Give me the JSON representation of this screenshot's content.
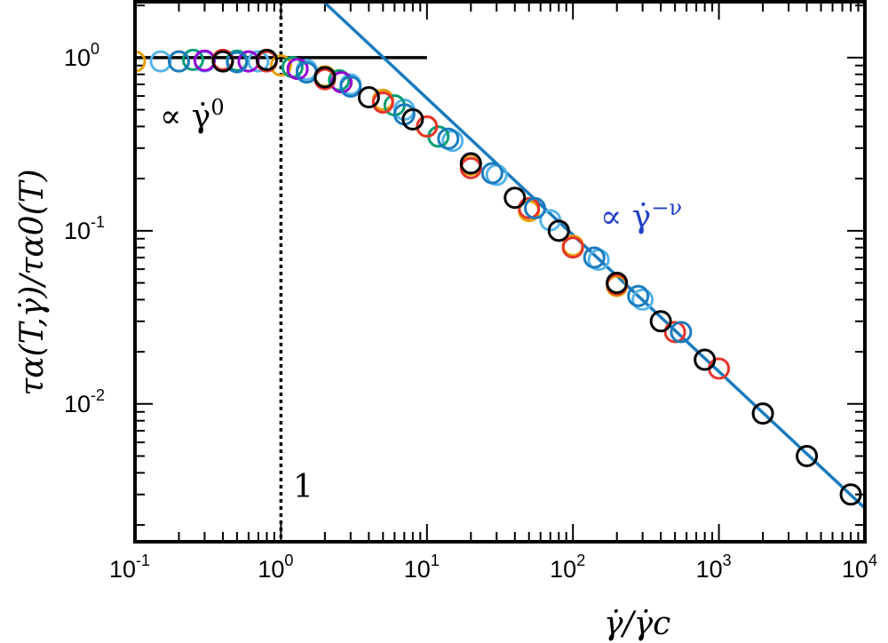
{
  "chart_data": {
    "type": "scatter",
    "title": "",
    "xlabel": "γ̇/γ̇c",
    "ylabel": "τα(T,γ̇)/τα0(T)",
    "xscale": "log",
    "yscale": "log",
    "xlim": [
      0.1,
      10000
    ],
    "ylim": [
      0.0016,
      2.1
    ],
    "x_ticks": [
      {
        "base": "10",
        "exp": "-1",
        "value": 0.1
      },
      {
        "base": "10",
        "exp": "0",
        "value": 1
      },
      {
        "base": "10",
        "exp": "1",
        "value": 10
      },
      {
        "base": "10",
        "exp": "2",
        "value": 100
      },
      {
        "base": "10",
        "exp": "3",
        "value": 1000
      },
      {
        "base": "10",
        "exp": "4",
        "value": 10000
      }
    ],
    "y_ticks": [
      {
        "base": "10",
        "exp": "0",
        "value": 1
      },
      {
        "base": "10",
        "exp": "-1",
        "value": 0.1
      },
      {
        "base": "10",
        "exp": "-2",
        "value": 0.01
      }
    ],
    "grid": false,
    "legend": "none",
    "marker": "open-circle",
    "series": [
      {
        "color": "#e69f00",
        "points": [
          [
            0.1,
            0.95
          ],
          [
            0.2,
            0.95
          ],
          [
            0.5,
            0.95
          ],
          [
            1,
            0.9
          ],
          [
            2,
            0.78
          ],
          [
            5,
            0.57
          ],
          [
            10,
            0.4
          ],
          [
            20,
            0.24
          ],
          [
            50,
            0.13
          ],
          [
            100,
            0.082
          ],
          [
            200,
            0.048
          ]
        ]
      },
      {
        "color": "#56b4e9",
        "points": [
          [
            0.15,
            0.95
          ],
          [
            0.3,
            0.95
          ],
          [
            0.7,
            0.95
          ],
          [
            1.5,
            0.85
          ],
          [
            3,
            0.7
          ],
          [
            7,
            0.5
          ],
          [
            15,
            0.33
          ],
          [
            30,
            0.21
          ],
          [
            70,
            0.115
          ],
          [
            150,
            0.068
          ],
          [
            300,
            0.04
          ]
        ]
      },
      {
        "color": "#009e73",
        "points": [
          [
            0.25,
            0.97
          ],
          [
            0.5,
            0.96
          ],
          [
            1.2,
            0.88
          ],
          [
            2.5,
            0.74
          ],
          [
            6,
            0.53
          ],
          [
            12,
            0.35
          ]
        ]
      },
      {
        "color": "#9400d3",
        "points": [
          [
            0.3,
            0.96
          ],
          [
            0.6,
            0.95
          ],
          [
            1.3,
            0.86
          ],
          [
            2.6,
            0.72
          ]
        ]
      },
      {
        "color": "#e8342a",
        "points": [
          [
            0.4,
            0.97
          ],
          [
            0.8,
            0.95
          ],
          [
            2,
            0.75
          ],
          [
            5,
            0.55
          ],
          [
            10,
            0.4
          ],
          [
            20,
            0.23
          ],
          [
            50,
            0.135
          ],
          [
            100,
            0.08
          ],
          [
            200,
            0.049
          ],
          [
            500,
            0.026
          ],
          [
            1000,
            0.016
          ]
        ]
      },
      {
        "color": "#1a7bbf",
        "points": [
          [
            0.2,
            0.95
          ],
          [
            0.5,
            0.94
          ],
          [
            1.5,
            0.82
          ],
          [
            3,
            0.68
          ],
          [
            7,
            0.47
          ],
          [
            14,
            0.34
          ],
          [
            28,
            0.215
          ],
          [
            55,
            0.135
          ],
          [
            140,
            0.07
          ],
          [
            280,
            0.042
          ],
          [
            550,
            0.026
          ]
        ]
      },
      {
        "color": "#000000",
        "points": [
          [
            0.4,
            0.95
          ],
          [
            0.8,
            0.97
          ],
          [
            2,
            0.77
          ],
          [
            4,
            0.59
          ],
          [
            8,
            0.44
          ],
          [
            20,
            0.245
          ],
          [
            40,
            0.155
          ],
          [
            80,
            0.1
          ],
          [
            200,
            0.05
          ],
          [
            400,
            0.03
          ],
          [
            800,
            0.018
          ],
          [
            2000,
            0.0088
          ],
          [
            4000,
            0.005
          ],
          [
            8000,
            0.003
          ]
        ]
      }
    ],
    "fit_lines": [
      {
        "color": "#000000",
        "points": [
          [
            0.1,
            1
          ],
          [
            10,
            1
          ]
        ]
      },
      {
        "color": "#1a7bbf",
        "points": [
          [
            1.5,
            2.6
          ],
          [
            10000,
            0.0025
          ]
        ]
      }
    ],
    "reference_line": {
      "x": 1,
      "style": "dotted",
      "color": "#000000",
      "label": "1"
    },
    "annotations": [
      {
        "text": "∝ γ̇",
        "sup": "0",
        "color": "#000000"
      },
      {
        "text": "∝ γ̇",
        "sup": "−ν",
        "color": "#1f3fc7"
      }
    ]
  }
}
